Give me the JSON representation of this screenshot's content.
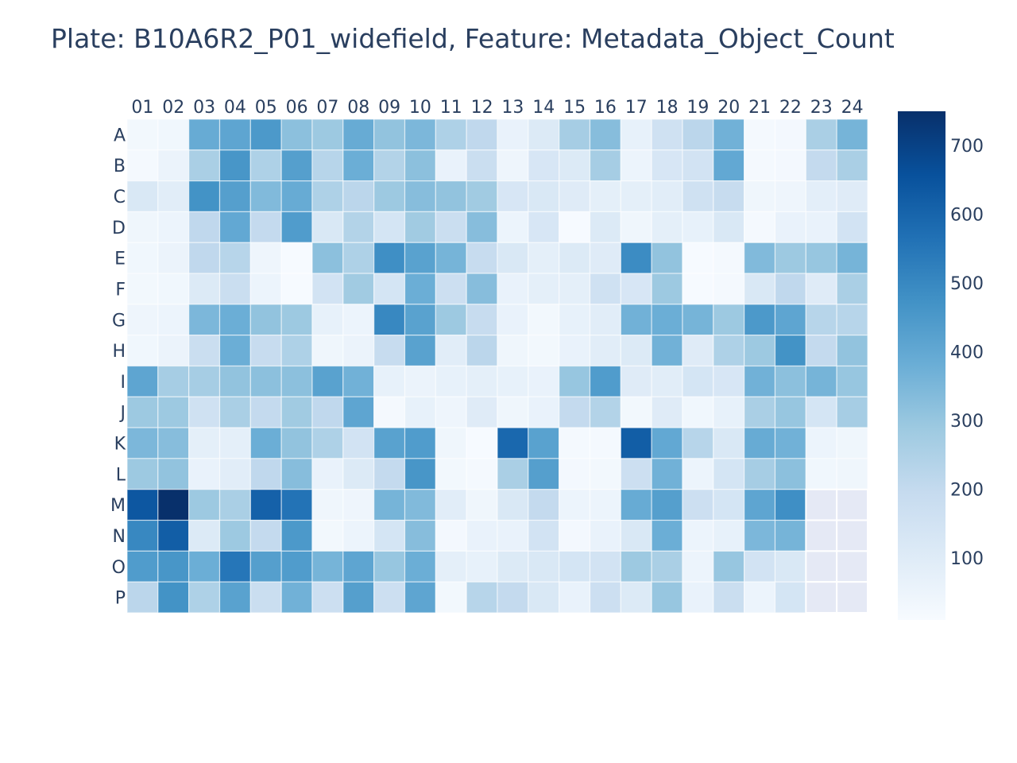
{
  "chart_data": {
    "type": "heatmap",
    "title": "Plate: B10A6R2_P01_widefield, Feature: Metadata_Object_Count",
    "x_categories": [
      "01",
      "02",
      "03",
      "04",
      "05",
      "06",
      "07",
      "08",
      "09",
      "10",
      "11",
      "12",
      "13",
      "14",
      "15",
      "16",
      "17",
      "18",
      "19",
      "20",
      "21",
      "22",
      "23",
      "24"
    ],
    "y_categories": [
      "A",
      "B",
      "C",
      "D",
      "E",
      "F",
      "G",
      "H",
      "I",
      "J",
      "K",
      "L",
      "M",
      "N",
      "O",
      "P"
    ],
    "values": [
      [
        30,
        35,
        390,
        410,
        450,
        320,
        290,
        390,
        310,
        350,
        250,
        210,
        60,
        110,
        270,
        330,
        70,
        160,
        220,
        370,
        20,
        25,
        260,
        360
      ],
      [
        20,
        55,
        260,
        460,
        250,
        430,
        230,
        380,
        240,
        320,
        60,
        180,
        45,
        130,
        110,
        270,
        50,
        130,
        150,
        400,
        20,
        25,
        200,
        260
      ],
      [
        120,
        90,
        470,
        430,
        340,
        390,
        250,
        220,
        290,
        330,
        310,
        280,
        130,
        120,
        100,
        80,
        80,
        90,
        160,
        190,
        40,
        45,
        85,
        100
      ],
      [
        40,
        50,
        210,
        400,
        200,
        440,
        120,
        240,
        140,
        280,
        180,
        330,
        50,
        130,
        15,
        110,
        40,
        80,
        70,
        120,
        20,
        60,
        60,
        150
      ],
      [
        35,
        55,
        210,
        230,
        45,
        15,
        320,
        250,
        480,
        420,
        360,
        190,
        120,
        80,
        110,
        100,
        490,
        310,
        15,
        20,
        340,
        290,
        300,
        360
      ],
      [
        30,
        35,
        110,
        180,
        50,
        15,
        150,
        280,
        140,
        380,
        170,
        330,
        60,
        80,
        80,
        160,
        130,
        290,
        15,
        20,
        120,
        210,
        100,
        260
      ],
      [
        45,
        50,
        350,
        380,
        310,
        290,
        70,
        50,
        500,
        420,
        290,
        190,
        60,
        30,
        70,
        90,
        370,
        380,
        360,
        290,
        450,
        410,
        230,
        230
      ],
      [
        35,
        55,
        180,
        380,
        190,
        250,
        40,
        55,
        190,
        420,
        90,
        220,
        40,
        30,
        60,
        90,
        110,
        370,
        100,
        250,
        290,
        470,
        200,
        310
      ],
      [
        410,
        270,
        270,
        310,
        320,
        320,
        420,
        370,
        70,
        55,
        70,
        80,
        70,
        60,
        300,
        440,
        100,
        90,
        140,
        130,
        370,
        320,
        360,
        300
      ],
      [
        290,
        290,
        160,
        260,
        200,
        280,
        210,
        410,
        20,
        70,
        45,
        100,
        40,
        60,
        200,
        240,
        30,
        100,
        35,
        70,
        260,
        300,
        140,
        270
      ],
      [
        350,
        330,
        80,
        80,
        380,
        310,
        250,
        150,
        420,
        440,
        40,
        15,
        590,
        420,
        20,
        20,
        620,
        400,
        230,
        120,
        390,
        370,
        50,
        40
      ],
      [
        290,
        310,
        60,
        90,
        210,
        330,
        60,
        110,
        200,
        460,
        30,
        20,
        260,
        430,
        25,
        30,
        170,
        370,
        50,
        140,
        270,
        320,
        35,
        40
      ],
      [
        640,
        750,
        290,
        260,
        610,
        560,
        40,
        45,
        360,
        340,
        90,
        40,
        120,
        200,
        50,
        50,
        390,
        430,
        170,
        140,
        410,
        480,
        null,
        null
      ],
      [
        500,
        620,
        110,
        290,
        200,
        450,
        30,
        50,
        140,
        330,
        25,
        60,
        60,
        150,
        25,
        60,
        120,
        380,
        50,
        70,
        350,
        360,
        null,
        null
      ],
      [
        440,
        460,
        380,
        550,
        430,
        440,
        360,
        410,
        300,
        380,
        80,
        70,
        110,
        120,
        140,
        150,
        290,
        260,
        50,
        300,
        150,
        120,
        null,
        null
      ],
      [
        220,
        470,
        250,
        420,
        180,
        370,
        170,
        430,
        170,
        410,
        30,
        230,
        200,
        120,
        60,
        170,
        110,
        300,
        60,
        180,
        50,
        140,
        null,
        null
      ]
    ],
    "zmin": 10,
    "zmax": 750,
    "colorbar_ticks": [
      100,
      200,
      300,
      400,
      500,
      600,
      700
    ],
    "colorscale": "Blues",
    "colorscale_stops": [
      "#f7fbff",
      "#deebf7",
      "#c6dbef",
      "#9ecae1",
      "#6baed6",
      "#4292c6",
      "#2171b5",
      "#08519c",
      "#08306b"
    ],
    "empty_cell_color": "#e5e9f5",
    "cell_border_color": "#ffffff",
    "x_axis_side": "top",
    "legend": "colorbar-right"
  }
}
